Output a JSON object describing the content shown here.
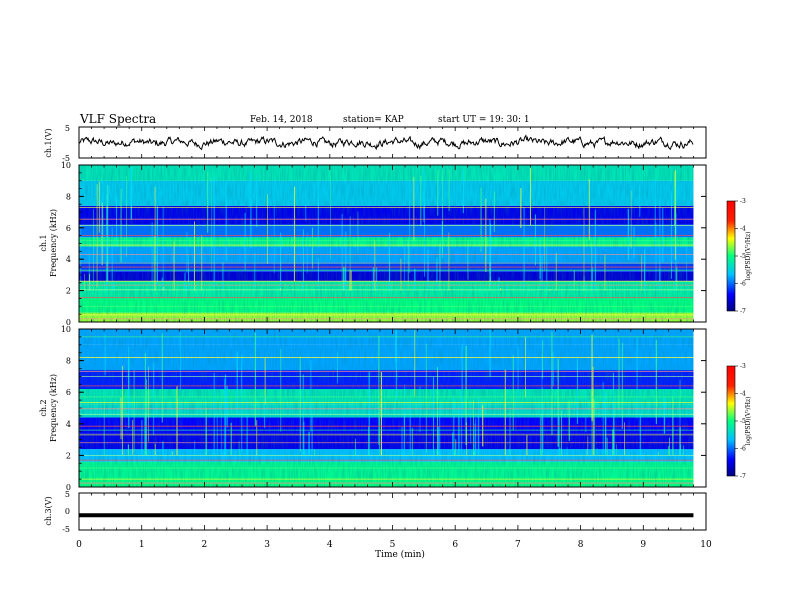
{
  "header": {
    "title": "VLF Spectra",
    "date": "Feb. 14, 2018",
    "station": "station= KAP",
    "start": "start  UT =   19: 30: 1"
  },
  "chart_data": [
    {
      "type": "line",
      "ylabel": "ch.1(V)",
      "xlim": [
        0,
        10
      ],
      "ylim": [
        -5,
        5
      ],
      "y_ticklabels": [
        "5",
        "-5"
      ],
      "trace": "noisy waveform around 0 V with amplitude about ±2 V over the full record",
      "x_end": 9.8
    },
    {
      "type": "heatmap",
      "ylabel": "Frequency (kHz)",
      "channel_label": "ch.1",
      "xlim": [
        0,
        10
      ],
      "ylim": [
        0,
        10
      ],
      "y_ticks": [
        0,
        2,
        4,
        6,
        8,
        10
      ],
      "x_end": 9.8,
      "bands": [
        {
          "from": 0,
          "to": 0.6,
          "log_psd": -4.6
        },
        {
          "from": 0.6,
          "to": 1.5,
          "log_psd": -5.0
        },
        {
          "from": 1.5,
          "to": 2.6,
          "log_psd": -5.2
        },
        {
          "from": 2.6,
          "to": 3.2,
          "log_psd": -6.6
        },
        {
          "from": 3.2,
          "to": 3.8,
          "log_psd": -6.2
        },
        {
          "from": 3.8,
          "to": 4.8,
          "log_psd": -5.8
        },
        {
          "from": 4.8,
          "to": 5.4,
          "log_psd": -5.1
        },
        {
          "from": 5.4,
          "to": 6.2,
          "log_psd": -6.0
        },
        {
          "from": 6.2,
          "to": 7.4,
          "log_psd": -6.5
        },
        {
          "from": 7.4,
          "to": 9.0,
          "log_psd": -5.6
        },
        {
          "from": 9.0,
          "to": 10.0,
          "log_psd": -5.3
        }
      ],
      "lines_khz": [
        0.2,
        0.45,
        1.0,
        1.55,
        2.05,
        2.35,
        2.6,
        3.3,
        3.5,
        3.75,
        4.3,
        4.9,
        5.2,
        5.5,
        6.15,
        6.55,
        7.3
      ],
      "colorbar": {
        "label": "log(PSD)(V²/Hz)",
        "range": [
          -7,
          -3
        ],
        "ticks": [
          "-3",
          "-4",
          "-5",
          "-6",
          "-7"
        ]
      }
    },
    {
      "type": "heatmap",
      "ylabel": "Frequency (kHz)",
      "channel_label": "ch.2",
      "xlim": [
        0,
        10
      ],
      "ylim": [
        0,
        10
      ],
      "y_ticks": [
        0,
        2,
        4,
        6,
        8,
        10
      ],
      "x_end": 9.8,
      "bands": [
        {
          "from": 0,
          "to": 0.6,
          "log_psd": -5.0
        },
        {
          "from": 0.6,
          "to": 1.6,
          "log_psd": -5.1
        },
        {
          "from": 1.6,
          "to": 2.4,
          "log_psd": -5.7
        },
        {
          "from": 2.4,
          "to": 3.4,
          "log_psd": -6.5
        },
        {
          "from": 3.4,
          "to": 4.4,
          "log_psd": -6.4
        },
        {
          "from": 4.4,
          "to": 5.2,
          "log_psd": -5.4
        },
        {
          "from": 5.2,
          "to": 6.2,
          "log_psd": -5.3
        },
        {
          "from": 6.2,
          "to": 7.4,
          "log_psd": -6.3
        },
        {
          "from": 7.4,
          "to": 9.0,
          "log_psd": -5.8
        },
        {
          "from": 9.0,
          "to": 10.0,
          "log_psd": -5.8
        }
      ],
      "lines_khz": [
        0.25,
        0.5,
        1.2,
        1.7,
        2.0,
        2.8,
        3.3,
        3.6,
        3.85,
        4.6,
        4.95,
        5.35,
        5.7,
        6.4,
        7.0,
        7.3,
        8.2,
        9.5
      ],
      "colorbar": {
        "label": "log(PSD)(V²/Hz)",
        "range": [
          -7,
          -3
        ],
        "ticks": [
          "-3",
          "-4",
          "-5",
          "-6",
          "-7"
        ]
      }
    },
    {
      "type": "line",
      "ylabel": "ch.3(V)",
      "xlim": [
        0,
        10
      ],
      "ylim": [
        -5,
        5
      ],
      "y_ticklabels": [
        "5",
        "0",
        "-5"
      ],
      "trace": "thick flat line at about -1 V",
      "constant_value": -1,
      "x_end": 9.8
    }
  ],
  "xaxis": {
    "label": "Time (min)",
    "ticks": [
      "0",
      "1",
      "2",
      "3",
      "4",
      "5",
      "6",
      "7",
      "8",
      "9",
      "10"
    ],
    "range": [
      0,
      10
    ]
  }
}
